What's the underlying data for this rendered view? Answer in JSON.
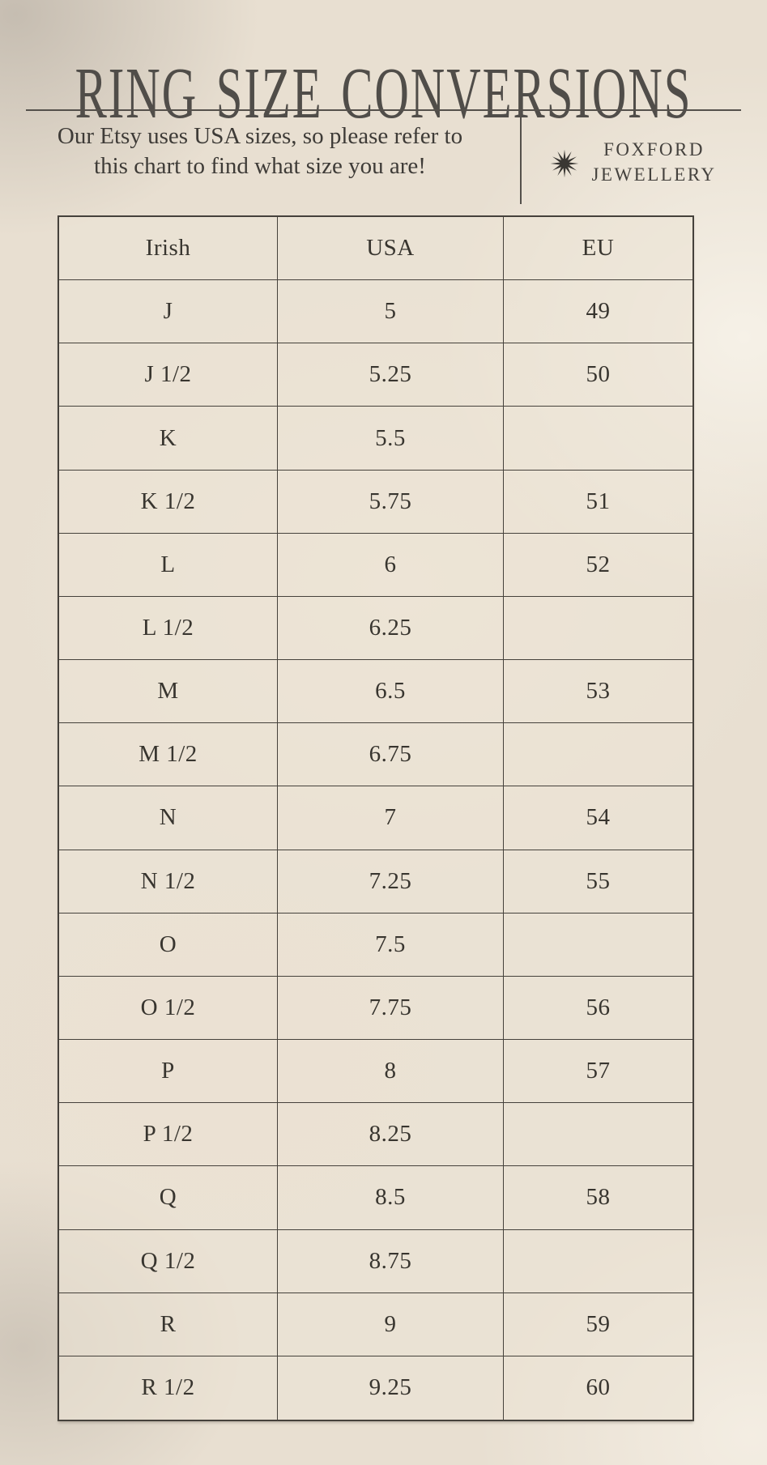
{
  "title": "RING SIZE CONVERSIONS",
  "subtitle": {
    "line1": "Our Etsy uses USA sizes, so please refer to",
    "line2": "this chart to find what size you are!"
  },
  "brand": {
    "icon": "starburst-icon",
    "line1": "FOXFORD",
    "line2": "JEWELLERY"
  },
  "colors": {
    "background": "#e8dfd1",
    "cell_background": "#ece3d5",
    "line": "#45413b",
    "text": "#38352f",
    "title_text": "#504d49"
  },
  "chart_data": {
    "type": "table",
    "title": "RING SIZE CONVERSIONS",
    "columns": [
      "Irish",
      "USA",
      "EU"
    ],
    "rows": [
      [
        "J",
        "5",
        "49"
      ],
      [
        "J 1/2",
        "5.25",
        "50"
      ],
      [
        "K",
        "5.5",
        ""
      ],
      [
        "K 1/2",
        "5.75",
        "51"
      ],
      [
        "L",
        "6",
        "52"
      ],
      [
        "L 1/2",
        "6.25",
        ""
      ],
      [
        "M",
        "6.5",
        "53"
      ],
      [
        "M 1/2",
        "6.75",
        ""
      ],
      [
        "N",
        "7",
        "54"
      ],
      [
        "N 1/2",
        "7.25",
        "55"
      ],
      [
        "O",
        "7.5",
        ""
      ],
      [
        "O 1/2",
        "7.75",
        "56"
      ],
      [
        "P",
        "8",
        "57"
      ],
      [
        "P 1/2",
        "8.25",
        ""
      ],
      [
        "Q",
        "8.5",
        "58"
      ],
      [
        "Q 1/2",
        "8.75",
        ""
      ],
      [
        "R",
        "9",
        "59"
      ],
      [
        "R 1/2",
        "9.25",
        "60"
      ]
    ],
    "layout": {
      "grid": "full-borders",
      "header_row": true,
      "text_align": "center"
    }
  }
}
